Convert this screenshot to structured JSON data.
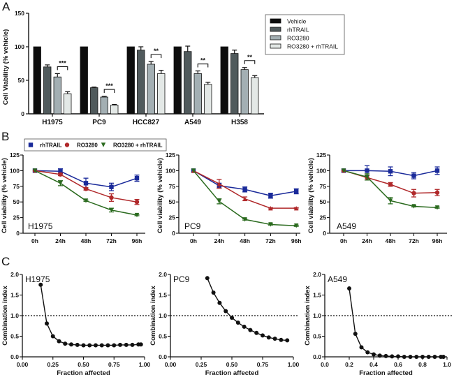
{
  "chart_data": [
    {
      "id": "A",
      "panel_letter": "A",
      "type": "bar",
      "ylabel": "Cell Viability (% vehicle)",
      "xlabel": "",
      "ylim": [
        0,
        150
      ],
      "yticks": [
        0,
        50,
        100,
        150
      ],
      "categories": [
        "H1975",
        "PC9",
        "HCC827",
        "A549",
        "H358"
      ],
      "series": [
        {
          "name": "Vehicle",
          "color": "#0d0d0d",
          "values": [
            100,
            100,
            100,
            100,
            100
          ],
          "errors": [
            0,
            0,
            0,
            0,
            0
          ]
        },
        {
          "name": "rhTRAIL",
          "color": "#505a5c",
          "values": [
            70,
            39,
            95,
            93,
            90
          ],
          "errors": [
            3,
            1,
            5,
            8,
            5
          ]
        },
        {
          "name": "RO3280",
          "color": "#a3afb3",
          "values": [
            55,
            25,
            74,
            60,
            66
          ],
          "errors": [
            5,
            1,
            4,
            4,
            3
          ]
        },
        {
          "name": "RO3280 + rhTRAIL",
          "color": "#e3e8e6",
          "values": [
            30,
            13,
            60,
            44,
            54
          ],
          "errors": [
            3,
            1,
            5,
            3,
            3
          ]
        }
      ],
      "significance": [
        {
          "category": "H1975",
          "label": "***"
        },
        {
          "category": "PC9",
          "label": "***"
        },
        {
          "category": "HCC827",
          "label": "**"
        },
        {
          "category": "A549",
          "label": "**"
        },
        {
          "category": "H358",
          "label": "**"
        }
      ],
      "legend_position": "top-right"
    },
    {
      "id": "B1",
      "panel_letter": "B",
      "type": "line",
      "cell_line": "H1975",
      "ylabel": "Cell viability (% vehicle)",
      "ylim": [
        0,
        125
      ],
      "yticks": [
        0,
        25,
        50,
        75,
        100,
        125
      ],
      "x": [
        "0h",
        "24h",
        "48h",
        "72h",
        "96h"
      ],
      "series": [
        {
          "name": "rhTRAIL",
          "color": "#1a2a9a",
          "marker": "square",
          "values": [
            100,
            99,
            80,
            74,
            88
          ],
          "errors": [
            0,
            4,
            8,
            6,
            5
          ]
        },
        {
          "name": "RO3280",
          "color": "#b0282a",
          "marker": "circle",
          "values": [
            100,
            94,
            71,
            57,
            50
          ],
          "errors": [
            0,
            2,
            2,
            6,
            4
          ]
        },
        {
          "name": "RO3280 + rhTRAIL",
          "color": "#2a6a1e",
          "marker": "triangle-down",
          "values": [
            100,
            80,
            52,
            37,
            29
          ],
          "errors": [
            0,
            4,
            1,
            3,
            1
          ]
        }
      ],
      "legend_position": "top"
    },
    {
      "id": "B2",
      "type": "line",
      "cell_line": "PC9",
      "ylabel": "Cell viability (% vehicle)",
      "ylim": [
        0,
        125
      ],
      "yticks": [
        0,
        25,
        50,
        75,
        100,
        125
      ],
      "x": [
        "0h",
        "24h",
        "48h",
        "72h",
        "96h"
      ],
      "series": [
        {
          "name": "rhTRAIL",
          "color": "#1a2a9a",
          "marker": "square",
          "values": [
            100,
            76,
            70,
            60,
            67
          ],
          "errors": [
            0,
            4,
            4,
            4,
            4
          ]
        },
        {
          "name": "RO3280",
          "color": "#b0282a",
          "marker": "triangle-up",
          "values": [
            100,
            79,
            55,
            40,
            40
          ],
          "errors": [
            0,
            7,
            3,
            1,
            1
          ]
        },
        {
          "name": "RO3280 + rhTRAIL",
          "color": "#2a6a1e",
          "marker": "triangle-down",
          "values": [
            100,
            51,
            22,
            14,
            12
          ],
          "errors": [
            0,
            4,
            1,
            1,
            1
          ]
        }
      ]
    },
    {
      "id": "B3",
      "type": "line",
      "cell_line": "A549",
      "ylabel": "Cell viability (% vehicle)",
      "ylim": [
        0,
        125
      ],
      "yticks": [
        0,
        25,
        50,
        75,
        100,
        125
      ],
      "x": [
        "0h",
        "24h",
        "48h",
        "72h",
        "96h"
      ],
      "series": [
        {
          "name": "rhTRAIL",
          "color": "#1a2a9a",
          "marker": "square",
          "values": [
            100,
            100,
            99,
            92,
            100
          ],
          "errors": [
            0,
            8,
            7,
            5,
            6
          ]
        },
        {
          "name": "RO3280",
          "color": "#b0282a",
          "marker": "circle",
          "values": [
            100,
            89,
            78,
            64,
            65
          ],
          "errors": [
            0,
            4,
            3,
            6,
            5
          ]
        },
        {
          "name": "RO3280 + rhTRAIL",
          "color": "#2a6a1e",
          "marker": "triangle-down",
          "values": [
            100,
            90,
            52,
            43,
            41
          ],
          "errors": [
            0,
            5,
            5,
            1,
            1
          ]
        }
      ]
    },
    {
      "id": "C1",
      "panel_letter": "C",
      "type": "line",
      "cell_line": "H1975",
      "xlabel": "Fraction affected",
      "ylabel": "Combination index",
      "xlim": [
        0,
        1
      ],
      "ylim": [
        0,
        2
      ],
      "xticks": [
        "0.00",
        "0.25",
        "0.50",
        "0.75",
        "1.00"
      ],
      "xtick_values": [
        0,
        0.25,
        0.5,
        0.75,
        1.0
      ],
      "yticks": [
        "0.0",
        "0.5",
        "1.0",
        "1.5",
        "2.0"
      ],
      "reference_line": 1.0,
      "x": [
        0.15,
        0.2,
        0.25,
        0.3,
        0.35,
        0.4,
        0.45,
        0.5,
        0.55,
        0.6,
        0.65,
        0.7,
        0.75,
        0.8,
        0.85,
        0.9,
        0.95,
        0.97
      ],
      "values": [
        1.75,
        0.81,
        0.5,
        0.38,
        0.32,
        0.3,
        0.29,
        0.28,
        0.28,
        0.28,
        0.28,
        0.28,
        0.28,
        0.29,
        0.29,
        0.29,
        0.3,
        0.3
      ]
    },
    {
      "id": "C2",
      "type": "line",
      "cell_line": "PC9",
      "xlabel": "Fraction affected",
      "ylabel": "Combination index",
      "xlim": [
        0,
        1
      ],
      "ylim": [
        0,
        2
      ],
      "xticks": [
        "0.00",
        "0.25",
        "0.50",
        "0.75",
        "1.00"
      ],
      "xtick_values": [
        0,
        0.25,
        0.5,
        0.75,
        1.0
      ],
      "yticks": [
        "0.0",
        "0.5",
        "1.0",
        "1.5",
        "2.0"
      ],
      "reference_line": 1.0,
      "x": [
        0.3,
        0.35,
        0.4,
        0.45,
        0.5,
        0.55,
        0.6,
        0.65,
        0.7,
        0.75,
        0.8,
        0.85,
        0.9,
        0.95
      ],
      "values": [
        1.91,
        1.56,
        1.31,
        1.11,
        0.95,
        0.83,
        0.73,
        0.65,
        0.58,
        0.52,
        0.47,
        0.44,
        0.41,
        0.4
      ]
    },
    {
      "id": "C3",
      "type": "line",
      "cell_line": "A549",
      "xlabel": "Fraction affected",
      "ylabel": "Combination index",
      "xlim": [
        0,
        1
      ],
      "ylim": [
        0,
        2
      ],
      "xticks": [
        "0.0",
        "0.2",
        "0.4",
        "0.6",
        "0.8",
        "1.0"
      ],
      "xtick_values": [
        0,
        0.2,
        0.4,
        0.6,
        0.8,
        1.0
      ],
      "yticks": [
        "0.0",
        "0.5",
        "1.0",
        "1.5",
        "2.0"
      ],
      "reference_line": 1.0,
      "x": [
        0.2,
        0.25,
        0.3,
        0.35,
        0.4,
        0.45,
        0.5,
        0.55,
        0.6,
        0.65,
        0.7,
        0.75,
        0.8,
        0.85,
        0.9,
        0.95,
        0.97
      ],
      "values": [
        1.66,
        0.56,
        0.23,
        0.11,
        0.06,
        0.03,
        0.02,
        0.01,
        0.01,
        0.0,
        0.0,
        0.0,
        0.0,
        0.0,
        0.0,
        0.0,
        0.0
      ]
    }
  ]
}
